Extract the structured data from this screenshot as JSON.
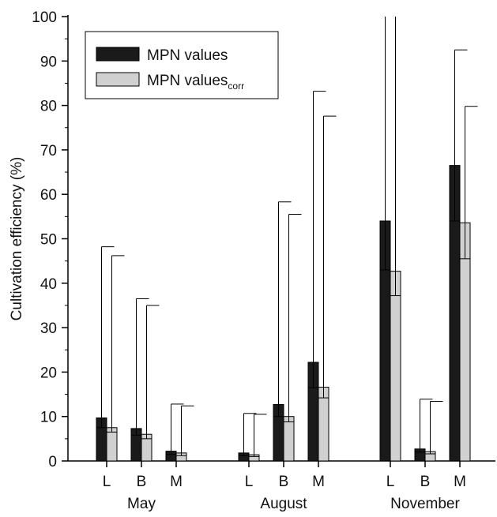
{
  "chart_data": {
    "type": "bar",
    "ylabel": "Cultivation efficiency (%)",
    "xlabel": "",
    "ylim": [
      0,
      100
    ],
    "yticks": [
      0,
      10,
      20,
      30,
      40,
      50,
      60,
      70,
      80,
      90,
      100
    ],
    "groups": [
      {
        "name": "May",
        "categories": [
          "L",
          "B",
          "M"
        ]
      },
      {
        "name": "August",
        "categories": [
          "L",
          "B",
          "M"
        ]
      },
      {
        "name": "November",
        "categories": [
          "L",
          "B",
          "M"
        ]
      }
    ],
    "series": [
      {
        "name": "MPN values",
        "color": "#1a1a1a",
        "values": [
          9.7,
          7.3,
          2.2,
          1.8,
          12.7,
          22.2,
          54.0,
          2.7,
          66.5
        ],
        "lower": [
          7.5,
          5.8,
          1.5,
          1.2,
          10.0,
          16.5,
          43.0,
          2.0,
          54.0
        ],
        "upper": [
          48.2,
          36.5,
          12.8,
          10.7,
          58.3,
          83.2,
          100,
          13.9,
          92.5
        ]
      },
      {
        "name": "MPN values",
        "subscript": "corr",
        "color": "#d0d0d0",
        "values": [
          7.5,
          6.0,
          1.8,
          1.4,
          10.0,
          16.6,
          42.7,
          2.1,
          53.6
        ],
        "lower": [
          6.5,
          5.0,
          1.2,
          1.0,
          8.8,
          14.2,
          37.2,
          1.6,
          45.5
        ],
        "upper": [
          46.2,
          35.0,
          12.4,
          10.5,
          55.5,
          77.6,
          100,
          13.4,
          79.8
        ]
      }
    ],
    "legend": {
      "position": "top-left"
    },
    "grid": false
  }
}
